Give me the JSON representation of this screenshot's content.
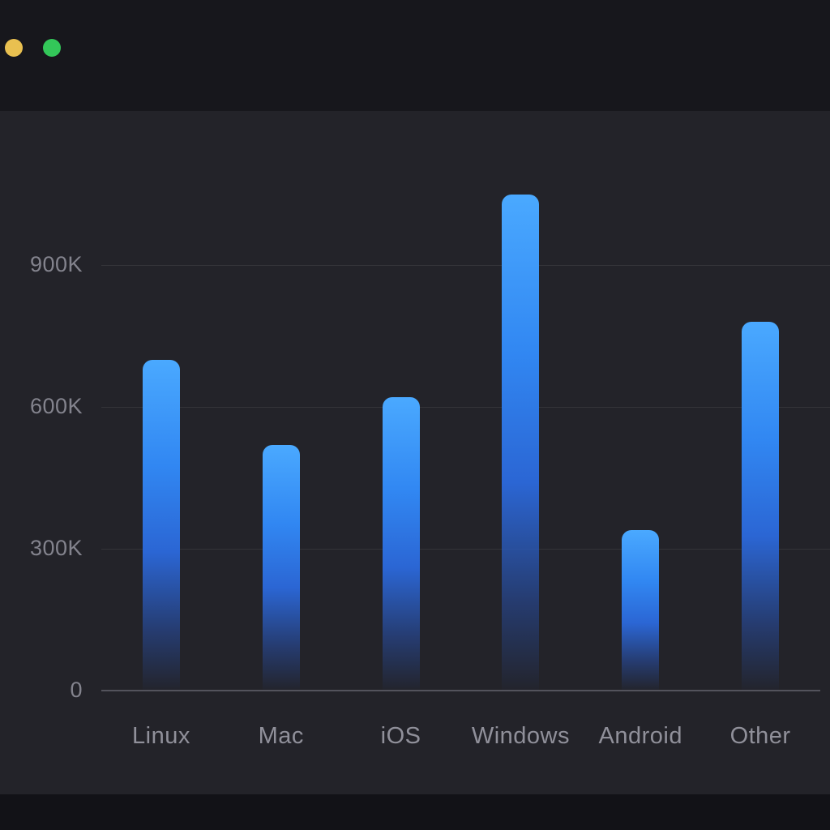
{
  "window": {
    "traffic_lights": [
      {
        "name": "minimize-light",
        "color": "#e9c050"
      },
      {
        "name": "zoom-light",
        "color": "#33c759"
      }
    ]
  },
  "chart_data": {
    "type": "bar",
    "title": "",
    "xlabel": "",
    "ylabel": "",
    "categories": [
      "Linux",
      "Mac",
      "iOS",
      "Windows",
      "Android",
      "Other"
    ],
    "values": [
      700000,
      520000,
      620000,
      1050000,
      340000,
      780000
    ],
    "y_ticks": [
      {
        "label": "0",
        "value": 0
      },
      {
        "label": "300K",
        "value": 300000
      },
      {
        "label": "600K",
        "value": 600000
      },
      {
        "label": "900K",
        "value": 900000
      }
    ],
    "ylim": [
      0,
      1200000
    ],
    "grid": true,
    "legend": "none",
    "bar_color_top": "#4aa9ff",
    "bar_color_bottom": "#232c46"
  }
}
